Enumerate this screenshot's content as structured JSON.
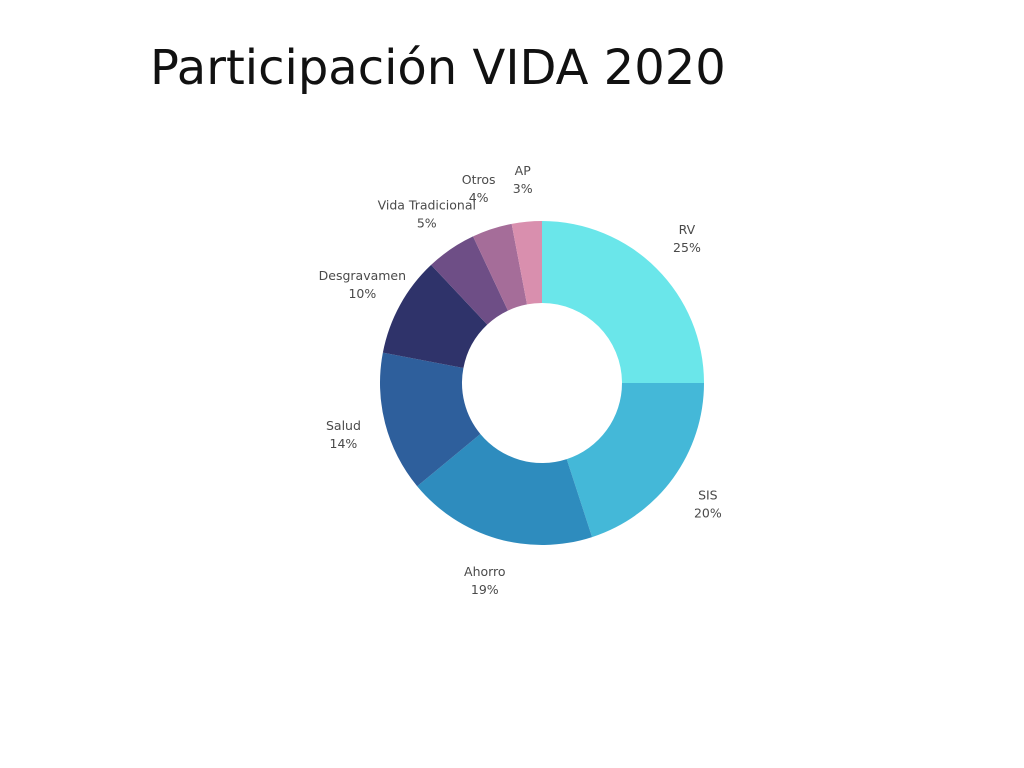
{
  "title": "Participación VIDA 2020",
  "chart_data": {
    "type": "pie",
    "title": "Participación VIDA 2020",
    "donut": true,
    "legend": "none",
    "categories": [
      "RV",
      "SIS",
      "Ahorro",
      "Salud",
      "Desgravamen",
      "Vida Tradicional",
      "Otros",
      "AP"
    ],
    "values": [
      25,
      20,
      19,
      14,
      10,
      5,
      4,
      3
    ],
    "value_labels": [
      "25%",
      "20%",
      "19%",
      "14%",
      "10%",
      "5%",
      "4%",
      "3%"
    ],
    "colors": [
      "#6ae6ea",
      "#44b8d8",
      "#2e8cbe",
      "#2e5f9c",
      "#2f336a",
      "#6e4e86",
      "#a56d99",
      "#d98fae"
    ]
  }
}
